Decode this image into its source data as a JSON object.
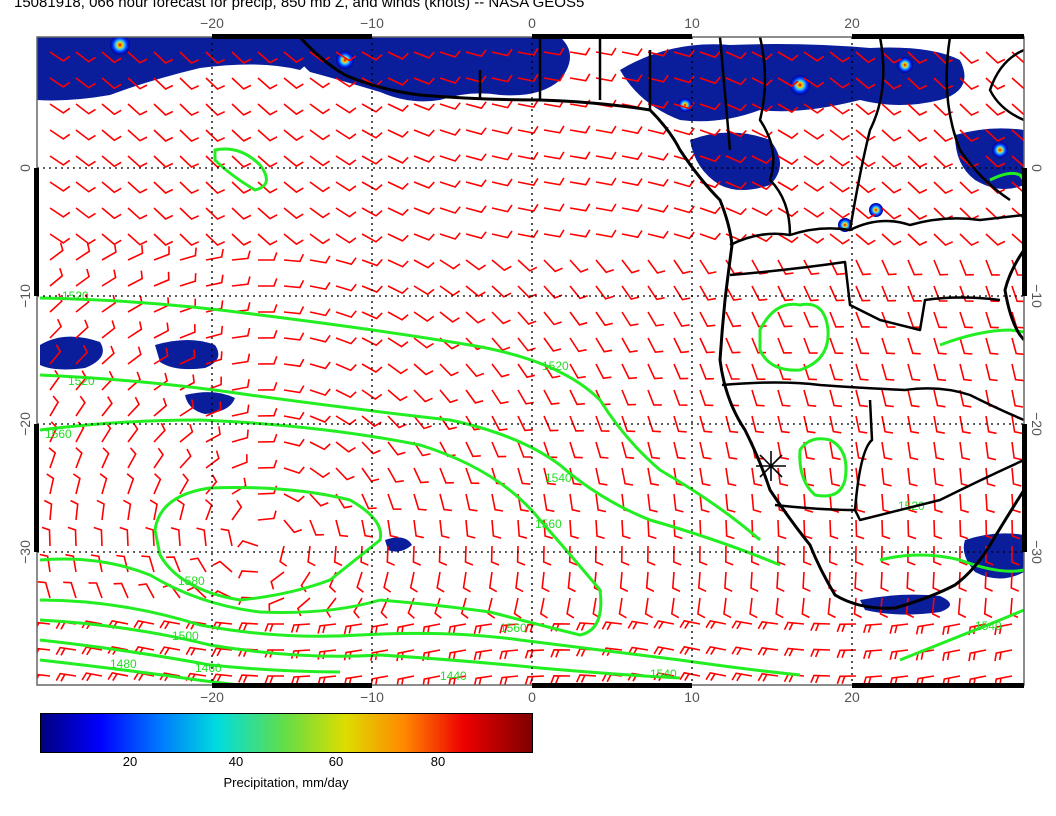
{
  "title": "15081918, 066 hour forecast for precip, 850 mb Z, and winds (knots) -- NASA GEOS5",
  "map": {
    "lon_range": [
      -31,
      31
    ],
    "lat_range": [
      10,
      -40
    ],
    "top_lon_labels": [
      "−20",
      "−10",
      "0",
      "10",
      "20"
    ],
    "bottom_lon_labels": [
      "−20",
      "−10",
      "0",
      "10",
      "20"
    ],
    "left_lat_labels": [
      "0",
      "−10",
      "−20",
      "−30"
    ],
    "right_lat_labels": [
      "0",
      "−10",
      "−20",
      "−30"
    ],
    "marker": {
      "lon": 15,
      "lat": -23,
      "symbol": "asterisk"
    }
  },
  "contour_labels": [
    "1520",
    "1520",
    "1520",
    "1540",
    "1560",
    "1560",
    "1560",
    "1580",
    "1500",
    "1480",
    "1460",
    "1440",
    "1540",
    "1520",
    "1540"
  ],
  "colorbar": {
    "title": "Precipitation, mm/day",
    "tick_labels": [
      "20",
      "40",
      "60",
      "80"
    ],
    "range": [
      0,
      100
    ]
  },
  "colors": {
    "barbs": "#ff0000",
    "contours": "#22ee22",
    "coast": "#000000",
    "grid": "#000000"
  }
}
